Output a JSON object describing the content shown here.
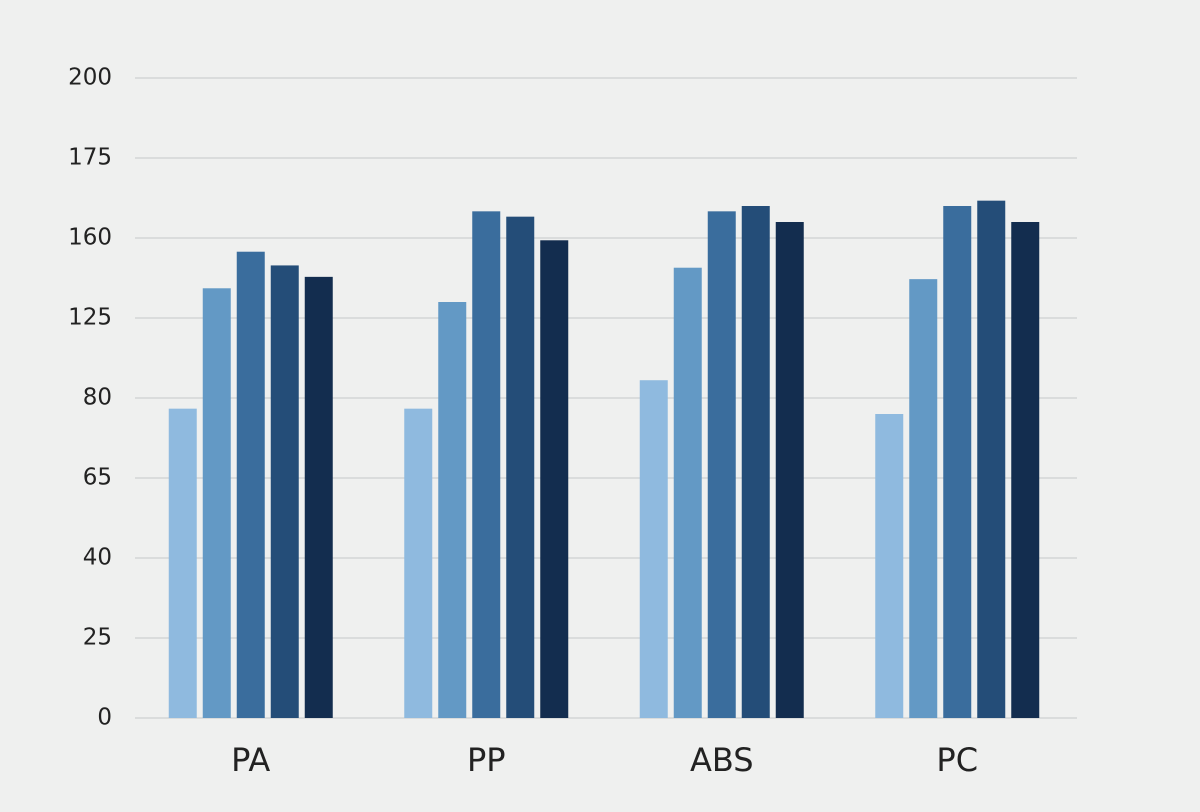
{
  "chart_data": {
    "type": "bar",
    "categories": [
      "PA",
      "PP",
      "ABS",
      "PC"
    ],
    "series": [
      {
        "color": "#8fbadf",
        "values": [
          78,
          78,
          90,
          77
        ]
      },
      {
        "color": "#6399c5",
        "values": [
          138,
          132,
          147,
          142
        ]
      },
      {
        "color": "#3a6d9d",
        "values": [
          154,
          165,
          165,
          166
        ]
      },
      {
        "color": "#244d78",
        "values": [
          148,
          164,
          166,
          167
        ]
      },
      {
        "color": "#132d4f",
        "values": [
          143,
          159,
          163,
          163
        ]
      }
    ],
    "ylim": [
      0,
      200
    ],
    "yticks": [
      0,
      25,
      40,
      65,
      80,
      125,
      160,
      175,
      200
    ],
    "grid": true
  }
}
